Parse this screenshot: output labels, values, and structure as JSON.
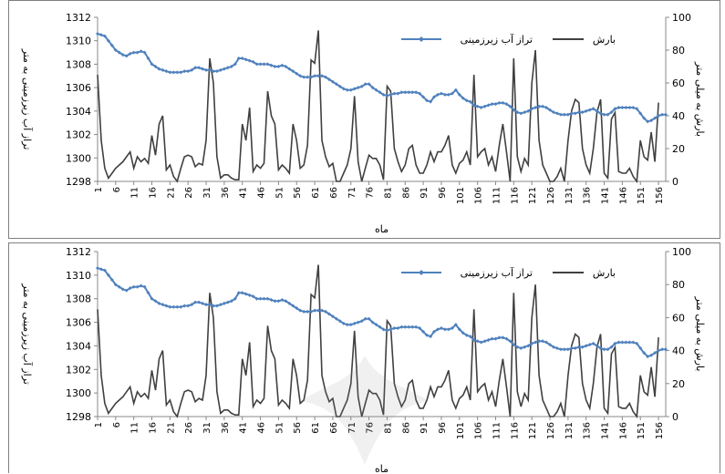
{
  "chart_data": [
    {
      "type": "line",
      "xlabel": "ماه",
      "ylabel_left": "تراز آب زیرزمینی به متر",
      "ylabel_right": "بارش به میلی متر",
      "ylim_left": [
        1298,
        1312
      ],
      "ylim_right": [
        0,
        100
      ],
      "yticks_left": [
        1298,
        1300,
        1302,
        1304,
        1306,
        1308,
        1310,
        1312
      ],
      "yticks_right": [
        0,
        20,
        40,
        60,
        80,
        100
      ],
      "xticks": [
        1,
        6,
        11,
        16,
        21,
        26,
        31,
        36,
        41,
        46,
        51,
        56,
        61,
        66,
        71,
        76,
        81,
        86,
        91,
        96,
        101,
        106,
        111,
        116,
        121,
        126,
        131,
        136,
        141,
        146,
        151,
        156
      ],
      "legend_position": "top",
      "series": [
        {
          "name": "تراز آب زیرزمینی",
          "axis": "left",
          "color": "#4f81bd",
          "marker": "diamond",
          "values": [
            1310.6,
            1310.5,
            1310.4,
            1310.0,
            1309.6,
            1309.2,
            1309.0,
            1308.8,
            1308.7,
            1308.9,
            1309.0,
            1309.0,
            1309.1,
            1309.0,
            1308.5,
            1308.0,
            1307.8,
            1307.6,
            1307.5,
            1307.4,
            1307.3,
            1307.3,
            1307.3,
            1307.3,
            1307.4,
            1307.4,
            1307.5,
            1307.7,
            1307.7,
            1307.6,
            1307.5,
            1307.5,
            1307.4,
            1307.4,
            1307.5,
            1307.6,
            1307.7,
            1307.8,
            1308.0,
            1308.5,
            1308.5,
            1308.4,
            1308.3,
            1308.2,
            1308.0,
            1308.0,
            1308.0,
            1308.0,
            1307.9,
            1307.8,
            1307.8,
            1307.9,
            1307.8,
            1307.6,
            1307.4,
            1307.2,
            1307.0,
            1306.9,
            1306.9,
            1306.9,
            1307.0,
            1307.0,
            1307.0,
            1306.9,
            1306.7,
            1306.5,
            1306.3,
            1306.1,
            1305.9,
            1305.8,
            1305.8,
            1305.9,
            1306.0,
            1306.1,
            1306.3,
            1306.3,
            1306.0,
            1305.8,
            1305.6,
            1305.4,
            1305.3,
            1305.4,
            1305.5,
            1305.5,
            1305.6,
            1305.6,
            1305.6,
            1305.6,
            1305.6,
            1305.5,
            1305.2,
            1304.9,
            1304.8,
            1305.2,
            1305.4,
            1305.5,
            1305.4,
            1305.4,
            1305.5,
            1305.8,
            1305.4,
            1305.1,
            1304.9,
            1304.8,
            1304.5,
            1304.4,
            1304.3,
            1304.4,
            1304.5,
            1304.6,
            1304.6,
            1304.7,
            1304.7,
            1304.6,
            1304.4,
            1304.1,
            1303.9,
            1303.8,
            1303.9,
            1304.0,
            1304.2,
            1304.3,
            1304.4,
            1304.4,
            1304.3,
            1304.1,
            1303.9,
            1303.8,
            1303.7,
            1303.7,
            1303.7,
            1303.8,
            1303.8,
            1303.9,
            1303.9,
            1304.0,
            1304.1,
            1304.2,
            1304.0,
            1303.8,
            1303.7,
            1303.7,
            1303.9,
            1304.2,
            1304.3,
            1304.3,
            1304.3,
            1304.3,
            1304.3,
            1304.2,
            1303.8,
            1303.4,
            1303.1,
            1303.2,
            1303.4,
            1303.6,
            1303.7,
            1303.7
          ]
        },
        {
          "name": "بارش",
          "axis": "right",
          "color": "#404040",
          "marker": "none",
          "values": [
            65,
            25,
            8,
            2,
            5,
            8,
            10,
            12,
            15,
            18,
            8,
            15,
            12,
            14,
            11,
            28,
            16,
            35,
            40,
            7,
            10,
            3,
            0,
            8,
            15,
            16,
            15,
            9,
            11,
            10,
            25,
            75,
            60,
            15,
            2,
            4,
            4,
            2,
            1,
            1,
            35,
            25,
            45,
            6,
            10,
            8,
            11,
            55,
            40,
            35,
            7,
            10,
            8,
            5,
            35,
            25,
            8,
            10,
            22,
            74,
            72,
            92,
            25,
            15,
            9,
            11,
            0,
            0,
            5,
            10,
            20,
            52,
            12,
            0,
            8,
            16,
            14,
            14,
            10,
            1,
            58,
            55,
            20,
            12,
            6,
            10,
            20,
            22,
            10,
            5,
            5,
            10,
            18,
            12,
            18,
            18,
            22,
            28,
            10,
            5,
            11,
            13,
            18,
            10,
            65,
            15,
            18,
            20,
            10,
            15,
            6,
            22,
            35,
            18,
            0,
            75,
            15,
            6,
            14,
            10,
            60,
            80,
            25,
            10,
            5,
            0,
            0,
            3,
            8,
            0,
            25,
            43,
            50,
            48,
            20,
            10,
            5,
            20,
            42,
            50,
            5,
            2,
            38,
            42,
            6,
            5,
            5,
            8,
            3,
            0,
            25,
            15,
            13,
            30,
            12,
            48
          ]
        }
      ]
    },
    {
      "type": "line",
      "xlabel": "ماه",
      "ylabel_left": "تراز آب زیرزمینی به متر",
      "ylabel_right": "بارش به میلی متر",
      "ylim_left": [
        1298,
        1312
      ],
      "ylim_right": [
        0,
        100
      ],
      "yticks_left": [
        1298,
        1300,
        1302,
        1304,
        1306,
        1308,
        1310,
        1312
      ],
      "yticks_right": [
        0,
        20,
        40,
        60,
        80,
        100
      ],
      "xticks": [
        1,
        6,
        11,
        16,
        21,
        26,
        31,
        36,
        41,
        46,
        51,
        56,
        61,
        66,
        71,
        76,
        81,
        86,
        91,
        96,
        101,
        106,
        111,
        116,
        121,
        126,
        131,
        136,
        141,
        146,
        151,
        156
      ],
      "legend_position": "top",
      "series": [
        {
          "name": "تراز آب زیرزمینی",
          "axis": "left",
          "color": "#4f81bd",
          "marker": "diamond",
          "values": [
            1310.6,
            1310.5,
            1310.4,
            1310.0,
            1309.6,
            1309.2,
            1309.0,
            1308.8,
            1308.7,
            1308.9,
            1309.0,
            1309.0,
            1309.1,
            1309.0,
            1308.5,
            1308.0,
            1307.8,
            1307.6,
            1307.5,
            1307.4,
            1307.3,
            1307.3,
            1307.3,
            1307.3,
            1307.4,
            1307.4,
            1307.5,
            1307.7,
            1307.7,
            1307.6,
            1307.5,
            1307.5,
            1307.4,
            1307.4,
            1307.5,
            1307.6,
            1307.7,
            1307.8,
            1308.0,
            1308.5,
            1308.5,
            1308.4,
            1308.3,
            1308.2,
            1308.0,
            1308.0,
            1308.0,
            1308.0,
            1307.9,
            1307.8,
            1307.8,
            1307.9,
            1307.8,
            1307.6,
            1307.4,
            1307.2,
            1307.0,
            1306.9,
            1306.9,
            1306.9,
            1307.0,
            1307.0,
            1307.0,
            1306.9,
            1306.7,
            1306.5,
            1306.3,
            1306.1,
            1305.9,
            1305.8,
            1305.8,
            1305.9,
            1306.0,
            1306.1,
            1306.3,
            1306.3,
            1306.0,
            1305.8,
            1305.6,
            1305.4,
            1305.3,
            1305.4,
            1305.5,
            1305.5,
            1305.6,
            1305.6,
            1305.6,
            1305.6,
            1305.6,
            1305.5,
            1305.2,
            1304.9,
            1304.8,
            1305.2,
            1305.4,
            1305.5,
            1305.4,
            1305.4,
            1305.5,
            1305.8,
            1305.4,
            1305.1,
            1304.9,
            1304.8,
            1304.5,
            1304.4,
            1304.3,
            1304.4,
            1304.5,
            1304.6,
            1304.6,
            1304.7,
            1304.7,
            1304.6,
            1304.4,
            1304.1,
            1303.9,
            1303.8,
            1303.9,
            1304.0,
            1304.2,
            1304.3,
            1304.4,
            1304.4,
            1304.3,
            1304.1,
            1303.9,
            1303.8,
            1303.7,
            1303.7,
            1303.7,
            1303.8,
            1303.8,
            1303.9,
            1303.9,
            1304.0,
            1304.1,
            1304.2,
            1304.0,
            1303.8,
            1303.7,
            1303.7,
            1303.9,
            1304.2,
            1304.3,
            1304.3,
            1304.3,
            1304.3,
            1304.3,
            1304.2,
            1303.8,
            1303.4,
            1303.1,
            1303.2,
            1303.4,
            1303.6,
            1303.7,
            1303.7
          ]
        },
        {
          "name": "بارش",
          "axis": "right",
          "color": "#404040",
          "marker": "none",
          "values": [
            65,
            25,
            8,
            2,
            5,
            8,
            10,
            12,
            15,
            18,
            8,
            15,
            12,
            14,
            11,
            28,
            16,
            35,
            40,
            7,
            10,
            3,
            0,
            8,
            15,
            16,
            15,
            9,
            11,
            10,
            25,
            75,
            60,
            15,
            2,
            4,
            4,
            2,
            1,
            1,
            35,
            25,
            45,
            6,
            10,
            8,
            11,
            55,
            40,
            35,
            7,
            10,
            8,
            5,
            35,
            25,
            8,
            10,
            22,
            74,
            72,
            92,
            25,
            15,
            9,
            11,
            0,
            0,
            5,
            10,
            20,
            52,
            12,
            0,
            8,
            16,
            14,
            14,
            10,
            1,
            58,
            55,
            20,
            12,
            6,
            10,
            20,
            22,
            10,
            5,
            5,
            10,
            18,
            12,
            18,
            18,
            22,
            28,
            10,
            5,
            11,
            13,
            18,
            10,
            65,
            15,
            18,
            20,
            10,
            15,
            6,
            22,
            35,
            18,
            0,
            75,
            15,
            6,
            14,
            10,
            60,
            80,
            25,
            10,
            5,
            0,
            0,
            3,
            8,
            0,
            25,
            43,
            50,
            48,
            20,
            10,
            5,
            20,
            42,
            50,
            5,
            2,
            38,
            42,
            6,
            5,
            5,
            8,
            3,
            0,
            25,
            15,
            13,
            30,
            12,
            48
          ]
        }
      ]
    }
  ]
}
